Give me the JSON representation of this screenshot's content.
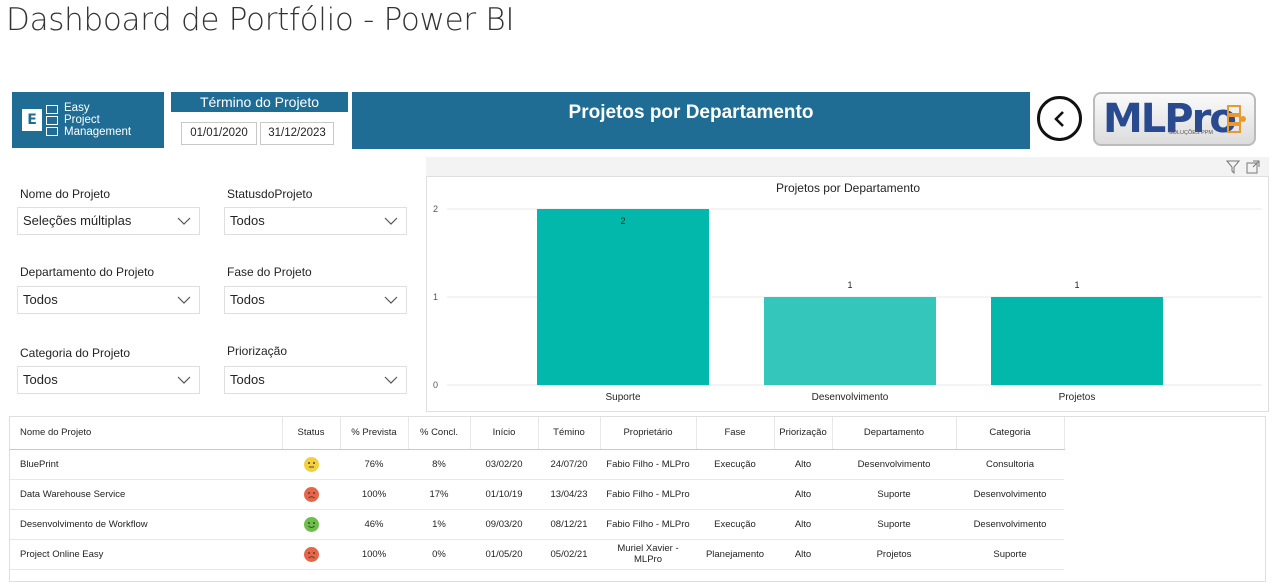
{
  "page_title": "Dashboard de Portfólio - Power BI",
  "logo": {
    "line1": "Easy",
    "line2": "Project",
    "line3": "Management",
    "letter": "E"
  },
  "date_filter": {
    "title": "Término do Projeto",
    "start": "01/01/2020",
    "end": "31/12/2023"
  },
  "banner_title": "Projetos por Departamento",
  "brand": {
    "name": "MLPro",
    "subtitle": "SOLUÇÕES PPM"
  },
  "filters": [
    {
      "label": "Nome do Projeto",
      "value": "Seleções múltiplas"
    },
    {
      "label": "StatusdoProjeto",
      "value": "Todos"
    },
    {
      "label": "Departamento do Projeto",
      "value": "Todos"
    },
    {
      "label": "Fase do Projeto",
      "value": "Todos"
    },
    {
      "label": "Categoria do Projeto",
      "value": "Todos"
    },
    {
      "label": "Priorização",
      "value": "Todos"
    }
  ],
  "chart_data": {
    "type": "bar",
    "title": "Projetos por Departamento",
    "categories": [
      "Suporte",
      "Desenvolvimento",
      "Projetos"
    ],
    "values": [
      2,
      1,
      1
    ],
    "ylim": [
      0,
      2
    ],
    "yticks": [
      "0",
      "1",
      "2"
    ],
    "colors": [
      "#01b8aa",
      "#34c6bb",
      "#01b8aa"
    ],
    "grid": true
  },
  "table": {
    "columns": [
      "Nome do Projeto",
      "Status",
      "% Prevista",
      "% Concl.",
      "Início",
      "Témino",
      "Proprietário",
      "Fase",
      "Priorização",
      "Departamento",
      "Categoria"
    ],
    "rows": [
      {
        "name": "BluePrint",
        "status": "neutral",
        "prevista": "76%",
        "concl": "8%",
        "inicio": "03/02/20",
        "termino": "24/07/20",
        "proprietario": "Fabio Filho - MLPro",
        "fase": "Execução",
        "priorizacao": "Alto",
        "departamento": "Desenvolvimento",
        "categoria": "Consultoria"
      },
      {
        "name": "Data Warehouse Service",
        "status": "sad",
        "prevista": "100%",
        "concl": "17%",
        "inicio": "01/10/19",
        "termino": "13/04/23",
        "proprietario": "Fabio Filho - MLPro",
        "fase": "",
        "priorizacao": "Alto",
        "departamento": "Suporte",
        "categoria": "Desenvolvimento"
      },
      {
        "name": "Desenvolvimento de Workflow",
        "status": "happy",
        "prevista": "46%",
        "concl": "1%",
        "inicio": "09/03/20",
        "termino": "08/12/21",
        "proprietario": "Fabio Filho - MLPro",
        "fase": "Execução",
        "priorizacao": "Alto",
        "departamento": "Suporte",
        "categoria": "Desenvolvimento"
      },
      {
        "name": "Project Online Easy",
        "status": "sad",
        "prevista": "100%",
        "concl": "0%",
        "inicio": "01/05/20",
        "termino": "05/02/21",
        "proprietario": "Muriel Xavier - MLPro",
        "fase": "Planejamento",
        "priorizacao": "Alto",
        "departamento": "Projetos",
        "categoria": "Suporte"
      }
    ]
  },
  "status_colors": {
    "happy": "#6cc04a",
    "neutral": "#f2d13b",
    "sad": "#e8654a"
  }
}
